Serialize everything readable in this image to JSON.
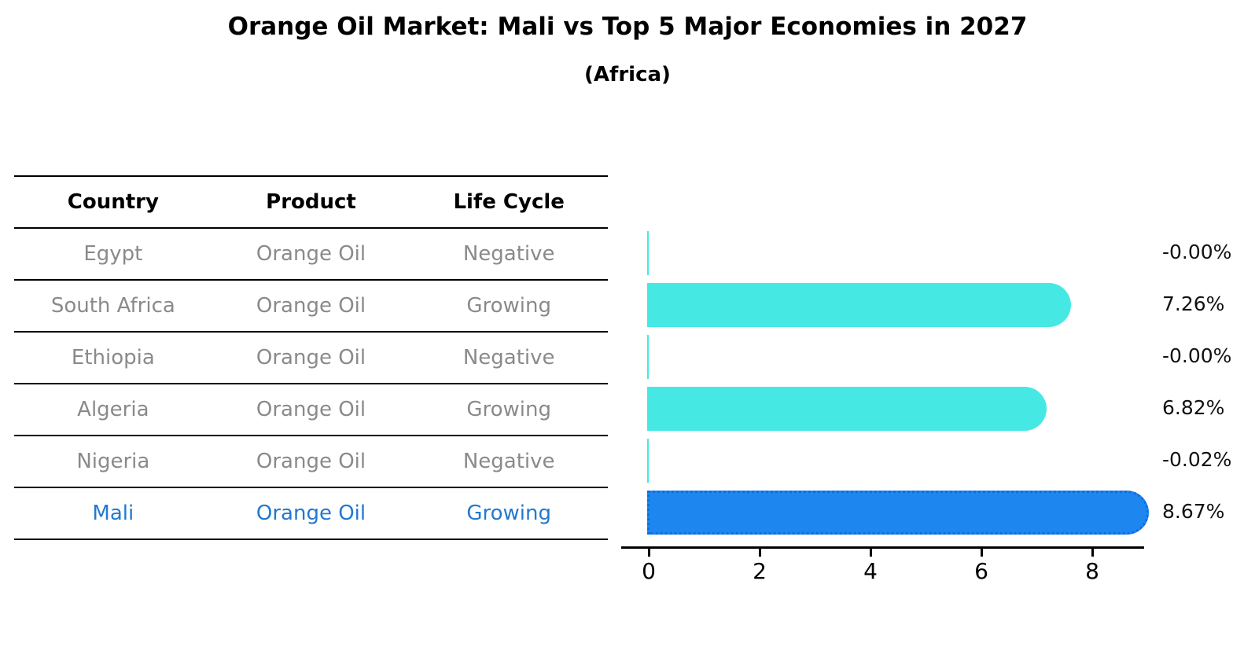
{
  "title": "Orange Oil Market: Mali vs Top 5 Major Economies in 2027",
  "subtitle": "(Africa)",
  "table": {
    "headers": [
      "Country",
      "Product",
      "Life Cycle"
    ],
    "rows": [
      {
        "country": "Egypt",
        "product": "Orange Oil",
        "life_cycle": "Negative",
        "highlight": false
      },
      {
        "country": "South Africa",
        "product": "Orange Oil",
        "life_cycle": "Growing",
        "highlight": false
      },
      {
        "country": "Ethiopia",
        "product": "Orange Oil",
        "life_cycle": "Negative",
        "highlight": false
      },
      {
        "country": "Algeria",
        "product": "Orange Oil",
        "life_cycle": "Growing",
        "highlight": false
      },
      {
        "country": "Nigeria",
        "product": "Orange Oil",
        "life_cycle": "Negative",
        "highlight": false
      },
      {
        "country": "Mali",
        "product": "Orange Oil",
        "life_cycle": "Growing",
        "highlight": true
      }
    ]
  },
  "chart_data": {
    "type": "bar",
    "orientation": "horizontal",
    "title": "Orange Oil Market: Mali vs Top 5 Major Economies in 2027 (Africa)",
    "categories": [
      "Egypt",
      "South Africa",
      "Ethiopia",
      "Algeria",
      "Nigeria",
      "Mali"
    ],
    "values": [
      -0.0,
      7.26,
      -0.0,
      6.82,
      -0.02,
      8.67
    ],
    "value_labels": [
      "-0.00%",
      "7.26%",
      "-0.00%",
      "6.82%",
      "-0.02%",
      "8.67%"
    ],
    "x_ticks": [
      "0",
      "2",
      "4",
      "6",
      "8"
    ],
    "xlim": [
      0,
      9
    ],
    "grid": false,
    "legend": "none",
    "highlight_index": 5,
    "colors": {
      "bar_default": "#46e8e4",
      "bar_highlight": "#1e86ef",
      "highlight_text": "#2279d0",
      "table_text": "#8a8a8a",
      "axis": "#000000"
    }
  }
}
